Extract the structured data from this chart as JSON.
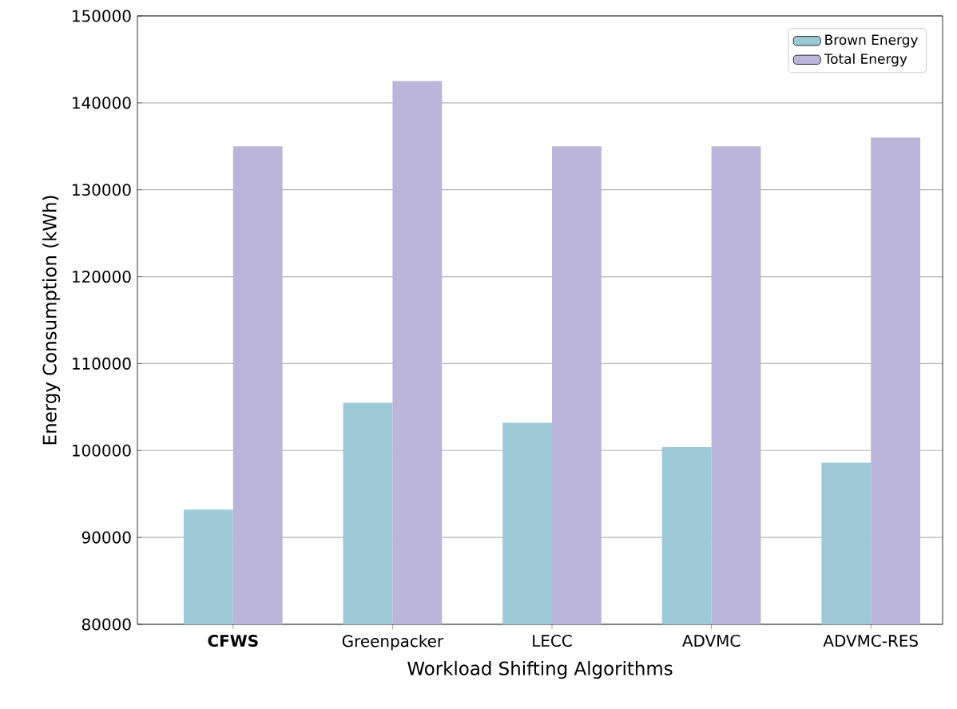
{
  "chart_data": {
    "type": "bar",
    "xlabel": "Workload Shifting Algorithms",
    "ylabel": "Energy Consumption (kWh)",
    "categories": [
      "**CFWS**",
      "Greenpacker",
      "LECC",
      "ADVMC",
      "ADVMC-RES"
    ],
    "series": [
      {
        "name": "Brown Energy",
        "color": "#9ecad8",
        "values": [
          93200,
          105500,
          103200,
          100400,
          98600
        ]
      },
      {
        "name": "Total Energy",
        "color": "#bcb5da",
        "values": [
          135000,
          142500,
          135000,
          135000,
          136000
        ]
      }
    ],
    "ylim": [
      80000,
      150000
    ],
    "yticks": [
      80000,
      90000,
      100000,
      110000,
      120000,
      130000,
      140000,
      150000
    ],
    "grid": "y",
    "legend": "top right"
  }
}
